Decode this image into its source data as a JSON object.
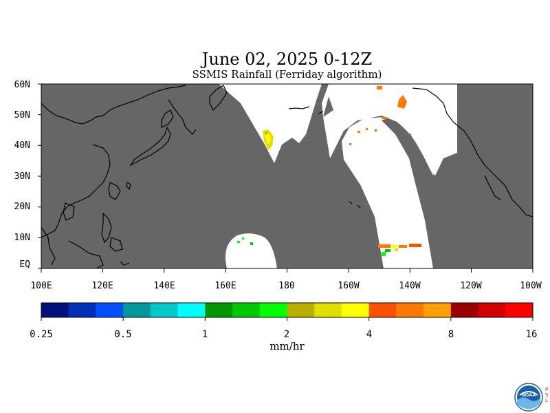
{
  "header": {
    "title": "June 02, 2025 0-12Z",
    "subtitle": "SSMIS Rainfall (Ferriday algorithm)"
  },
  "map": {
    "lat_labels": [
      "60N",
      "50N",
      "40N",
      "30N",
      "20N",
      "10N",
      "EQ"
    ],
    "lon_labels": [
      "100E",
      "120E",
      "140E",
      "160E",
      "180",
      "160W",
      "140W",
      "120W",
      "100W"
    ],
    "no_data_color": "#666666",
    "swath_color": "#ffffff"
  },
  "colorbar": {
    "colors": [
      "#00107a",
      "#0030b8",
      "#0050ff",
      "#00989a",
      "#00c8c8",
      "#00ffff",
      "#009800",
      "#00c800",
      "#00ff00",
      "#b8b000",
      "#e0e000",
      "#ffff00",
      "#ff5000",
      "#ff7800",
      "#ffa000",
      "#9a0000",
      "#d00000",
      "#ff0000"
    ],
    "tick_labels": [
      "0.25",
      "0.5",
      "1",
      "2",
      "4",
      "8",
      "16"
    ],
    "units": "mm/hr"
  },
  "logo": {
    "name": "NOAA",
    "side_text": "PSL"
  }
}
